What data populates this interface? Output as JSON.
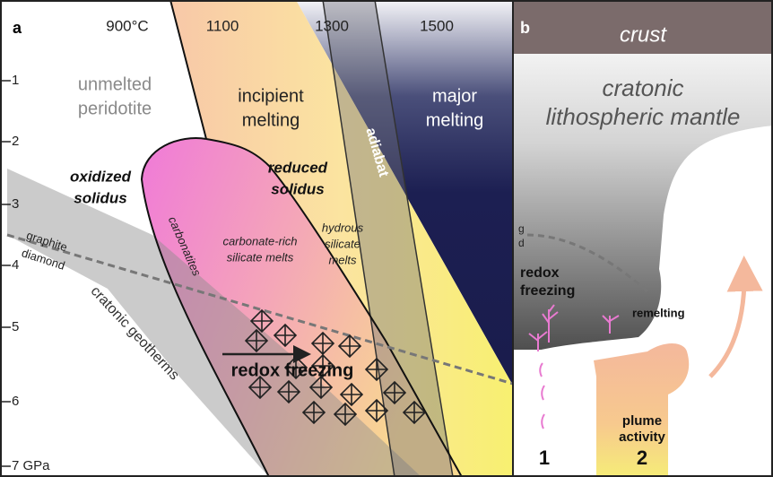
{
  "panel_a": {
    "label": "a",
    "temperature_ticks": [
      "900°C",
      "1100",
      "1300",
      "1500"
    ],
    "pressure_ticks": [
      "1",
      "2",
      "3",
      "4",
      "5",
      "6",
      "7 GPa"
    ],
    "unmelted": [
      "unmelted",
      "peridotite"
    ],
    "incipient": [
      "incipient",
      "melting"
    ],
    "major": [
      "major",
      "melting"
    ],
    "adiabat": "adiabat",
    "oxidized_solidus": [
      "oxidized",
      "solidus"
    ],
    "reduced_solidus": [
      "reduced",
      "solidus"
    ],
    "carbonatites": "carbonatites",
    "carbonate_melts": [
      "carbonate-rich",
      "silicate melts"
    ],
    "hydrous_melts": [
      "hydrous",
      "silicate",
      "melts"
    ],
    "graphite": "graphite",
    "diamond": "diamond",
    "geotherms": "cratonic geotherms",
    "redox_freezing": "redox freezing"
  },
  "panel_b": {
    "label": "b",
    "crust": "crust",
    "mantle": [
      "cratonic",
      "lithospheric mantle"
    ],
    "graphite": "g",
    "diamond": "d",
    "redox_freezing": [
      "redox",
      "freezing"
    ],
    "remelting": "remelting",
    "plume": [
      "plume",
      "activity"
    ],
    "case_1": "1",
    "case_2": "2"
  }
}
